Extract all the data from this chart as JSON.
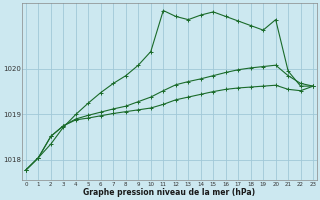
{
  "title": "Graphe pression niveau de la mer (hPa)",
  "background_color": "#cce8f0",
  "grid_color": "#a0c8d8",
  "line_color": "#1a6b2a",
  "x_ticks": [
    0,
    1,
    2,
    3,
    4,
    5,
    6,
    7,
    8,
    9,
    10,
    11,
    12,
    13,
    14,
    15,
    16,
    17,
    18,
    19,
    20,
    21,
    22,
    23
  ],
  "y_ticks": [
    1018,
    1019,
    1020
  ],
  "ylim": [
    1017.55,
    1021.45
  ],
  "xlim": [
    -0.3,
    23.3
  ],
  "series1": [
    1017.78,
    1018.05,
    1018.35,
    1018.72,
    1019.0,
    1019.25,
    1019.48,
    1019.68,
    1019.85,
    1020.08,
    1020.38,
    1021.28,
    1021.15,
    1021.08,
    1021.18,
    1021.25,
    1021.15,
    1021.05,
    1020.95,
    1020.85,
    1021.08,
    1019.95,
    1019.62,
    1019.62
  ],
  "series2": [
    1017.78,
    1018.05,
    1018.52,
    1018.75,
    1018.9,
    1018.98,
    1019.05,
    1019.12,
    1019.18,
    1019.28,
    1019.38,
    1019.52,
    1019.65,
    1019.72,
    1019.78,
    1019.85,
    1019.92,
    1019.98,
    1020.02,
    1020.05,
    1020.08,
    1019.85,
    1019.68,
    1019.62
  ],
  "series3": [
    1017.78,
    1018.05,
    1018.52,
    1018.75,
    1018.88,
    1018.92,
    1018.97,
    1019.02,
    1019.06,
    1019.1,
    1019.14,
    1019.22,
    1019.32,
    1019.38,
    1019.44,
    1019.5,
    1019.55,
    1019.58,
    1019.6,
    1019.62,
    1019.64,
    1019.55,
    1019.52,
    1019.62
  ]
}
